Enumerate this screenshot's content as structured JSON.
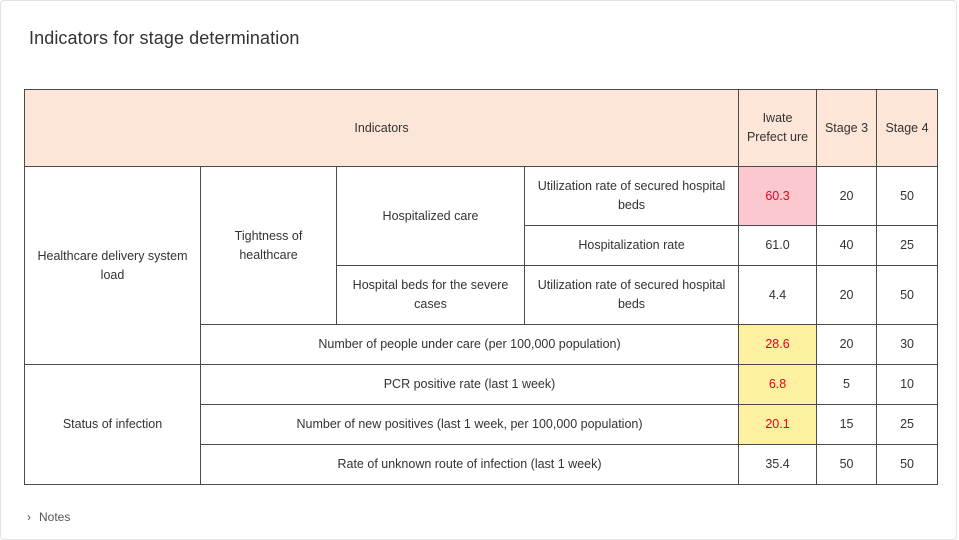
{
  "title": "Indicators for stage determination",
  "header": {
    "indicators": "Indicators",
    "prefecture": "Iwate Prefect ure",
    "stage3": "Stage 3",
    "stage4": "Stage 4"
  },
  "categories": {
    "healthcare": "Healthcare delivery system load",
    "tightness": "Tightness of healthcare",
    "hospitalized": "Hospitalized care",
    "severe": "Hospital beds for the severe cases",
    "infection": "Status of infection"
  },
  "rows": [
    {
      "label": "Utilization rate of secured hospital beds",
      "value": "60.3",
      "stage3": "20",
      "stage4": "50"
    },
    {
      "label": "Hospitalization rate",
      "value": "61.0",
      "stage3": "40",
      "stage4": "25"
    },
    {
      "label": "Utilization rate of secured hospital beds",
      "value": "4.4",
      "stage3": "20",
      "stage4": "50"
    },
    {
      "label": "Number of people under care (per 100,000 population)",
      "value": "28.6",
      "stage3": "20",
      "stage4": "30"
    },
    {
      "label": "PCR positive rate (last 1 week)",
      "value": "6.8",
      "stage3": "5",
      "stage4": "10"
    },
    {
      "label": "Number of new positives (last 1 week, per 100,000 population)",
      "value": "20.1",
      "stage3": "15",
      "stage4": "25"
    },
    {
      "label": "Rate of unknown route of infection (last 1 week)",
      "value": "35.4",
      "stage3": "50",
      "stage4": "50"
    }
  ],
  "colors": {
    "header_bg": "#fde5d8",
    "stage3_bg": "#fdf0a0",
    "stage4_bg": "#fcc8d0",
    "stage3_text": "#f06a2a",
    "stage4_text": "#e8001c"
  },
  "note": {
    "icon": "chevron-right-icon",
    "label": "Notes"
  }
}
